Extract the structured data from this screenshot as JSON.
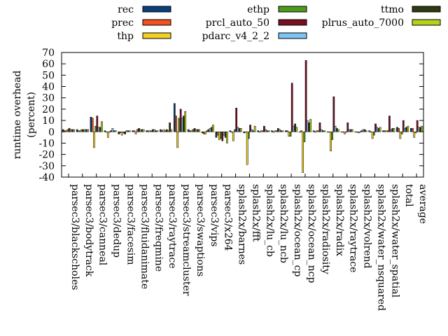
{
  "chart_data": {
    "type": "bar",
    "title": "",
    "xlabel": "",
    "ylabel": "runtime overhead\n(percent)",
    "ylim": [
      -40,
      70
    ],
    "yticks": [
      -40,
      -30,
      -20,
      -10,
      0,
      10,
      20,
      30,
      40,
      50,
      60,
      70
    ],
    "grid": false,
    "legend_position": "top",
    "categories": [
      "parsec3/blackscholes",
      "parsec3/bodytrack",
      "parsec3/canneal",
      "parsec3/dedup",
      "parsec3/facesim",
      "parsec3/fluidanimate",
      "parsec3/freqmine",
      "parsec3/raytrace",
      "parsec3/streamcluster",
      "parsec3/swaptions",
      "parsec3/vips",
      "parsec3/x264",
      "splash2x/barnes",
      "splash2x/fft",
      "splash2x/lu_cb",
      "splash2x/lu_ncb",
      "splash2x/ocean_cp",
      "splash2x/ocean_ncp",
      "splash2x/radiosity",
      "splash2x/radix",
      "splash2x/raytrace",
      "splash2x/volrend",
      "splash2x/water_nsquared",
      "splash2x/water_spatial",
      "total",
      "average"
    ],
    "series": [
      {
        "name": "rec",
        "color": "#0b3f7a",
        "values": [
          2,
          2,
          13,
          1,
          -2,
          1,
          1,
          2,
          25,
          2,
          -1,
          -5,
          1,
          -1,
          1,
          1,
          1,
          0,
          1,
          0,
          0,
          0,
          1,
          1,
          4,
          3
        ]
      },
      {
        "name": "prec",
        "color": "#f4511e",
        "values": [
          1,
          1,
          12,
          0,
          -1,
          1,
          1,
          1,
          14,
          1,
          -2,
          -3,
          0,
          0,
          0,
          0,
          1,
          1,
          0,
          0,
          0,
          0,
          0,
          1,
          3,
          3
        ]
      },
      {
        "name": "thp",
        "color": "#f2d024",
        "values": [
          1,
          1,
          -14,
          -5,
          -3,
          -2,
          1,
          2,
          -14,
          1,
          -2,
          -7,
          -8,
          -29,
          1,
          1,
          -4,
          -36,
          1,
          -17,
          -2,
          -1,
          -6,
          1,
          -6,
          -5
        ]
      },
      {
        "name": "ethp",
        "color": "#4e9a1c",
        "values": [
          2,
          2,
          5,
          0,
          -1,
          2,
          1,
          1,
          12,
          2,
          1,
          -6,
          2,
          -6,
          1,
          1,
          -4,
          -9,
          1,
          -7,
          0,
          0,
          -3,
          1,
          -2,
          -1
        ]
      },
      {
        "name": "prcl_auto_50",
        "color": "#7a0f24",
        "values": [
          3,
          2,
          14,
          1,
          -2,
          3,
          2,
          2,
          20,
          3,
          2,
          -8,
          21,
          6,
          5,
          3,
          43,
          63,
          8,
          31,
          8,
          1,
          7,
          14,
          10,
          10
        ]
      },
      {
        "name": "pdarc_v4_2_2",
        "color": "#7fc4f2",
        "values": [
          2,
          2,
          4,
          3,
          1,
          2,
          2,
          1,
          12,
          2,
          3,
          -3,
          4,
          2,
          2,
          2,
          5,
          10,
          2,
          5,
          2,
          2,
          4,
          2,
          3,
          4
        ]
      },
      {
        "name": "ttmo",
        "color": "#2e3a10",
        "values": [
          2,
          2,
          4,
          1,
          1,
          2,
          1,
          8,
          14,
          2,
          4,
          -5,
          3,
          1,
          1,
          1,
          7,
          8,
          1,
          3,
          2,
          2,
          3,
          3,
          4,
          4
        ]
      },
      {
        "name": "plrus_auto_7000",
        "color": "#b5d11a",
        "values": [
          2,
          2,
          9,
          1,
          1,
          2,
          1,
          2,
          18,
          2,
          6,
          -10,
          3,
          5,
          1,
          1,
          4,
          11,
          1,
          2,
          2,
          1,
          4,
          3,
          5,
          5
        ]
      }
    ]
  }
}
